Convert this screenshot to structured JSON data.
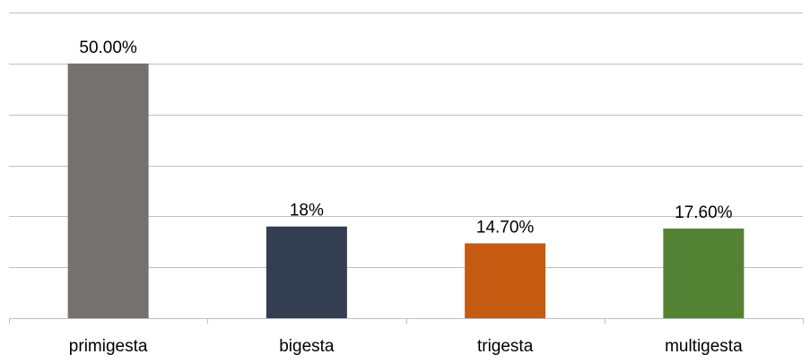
{
  "chart_data": {
    "type": "bar",
    "title": "",
    "xlabel": "",
    "ylabel": "",
    "categories": [
      "primigesta",
      "bigesta",
      "trigesta",
      "multigesta"
    ],
    "values": [
      50.0,
      18.0,
      14.7,
      17.6
    ],
    "data_labels": [
      "50.00%",
      "18%",
      "14.70%",
      "17.60%"
    ],
    "colors": [
      "#767171",
      "#333F50",
      "#C55A11",
      "#548235"
    ],
    "ylim": [
      0,
      60
    ],
    "y_gridlines": [
      0,
      10,
      20,
      30,
      40,
      50,
      60
    ],
    "y_tick_labels_shown": false,
    "grid": true,
    "legend": "none"
  }
}
